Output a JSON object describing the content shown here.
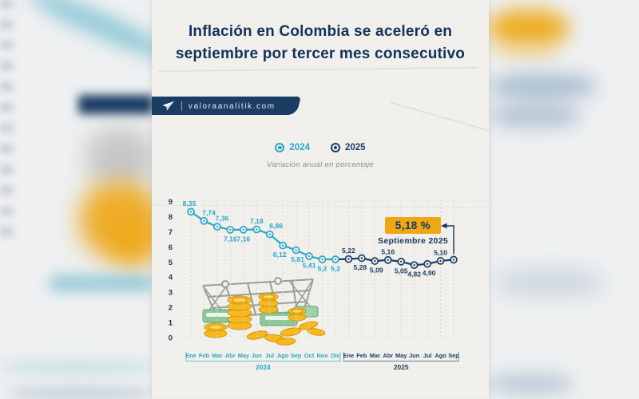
{
  "banner": {
    "site": "valoraanalitik.com"
  },
  "icons": {
    "banner": "paper-plane-icon",
    "legend_marker": "bullseye-icon",
    "illustration": "shopping-basket-with-coins-and-bills"
  },
  "colors": {
    "navy": "#16365f",
    "teal": "#2aa7c7",
    "gold": "#efa715",
    "paper": "#f1f0ec",
    "grid": "#d8d7d1"
  },
  "chart_data": {
    "type": "line",
    "title": "Inflación en Colombia se aceleró en septiembre por tercer mes consecutivo",
    "subtitle": "Variación anual en porcentaje",
    "ylim": [
      0,
      9
    ],
    "yticks": [
      0,
      1,
      2,
      3,
      4,
      5,
      6,
      7,
      8,
      9
    ],
    "grid": "vertical-dashed",
    "legend_position": "top-center",
    "series": [
      {
        "name": "2024",
        "color": "#2aa7c7",
        "months": [
          "Ene",
          "Feb",
          "Mar",
          "Abr",
          "May",
          "Jun",
          "Jul",
          "Ago",
          "Sep",
          "Oct",
          "Nov",
          "Dic"
        ],
        "values": [
          8.35,
          7.74,
          7.36,
          7.16,
          7.16,
          7.18,
          6.86,
          6.12,
          5.81,
          5.41,
          5.2,
          5.2
        ],
        "labels": [
          "8,35",
          "7,74",
          "7,36",
          "7,16",
          "7,16",
          "7,18",
          "6,86",
          "6,12",
          "5,81",
          "5,41",
          "5,2",
          "5,2"
        ],
        "label_pos": [
          "above",
          "above",
          "above",
          "below",
          "below",
          "above",
          "above",
          "below",
          "below",
          "below",
          "below",
          "below"
        ],
        "label_dx": [
          -2,
          6,
          6,
          0,
          0,
          0,
          8,
          -4,
          2,
          0,
          0,
          0
        ]
      },
      {
        "name": "2025",
        "color": "#1c3e66",
        "months": [
          "Ene",
          "Feb",
          "Mar",
          "Abr",
          "May",
          "Jun",
          "Jul",
          "Ago",
          "Sep"
        ],
        "values": [
          5.22,
          5.28,
          5.09,
          5.16,
          5.05,
          4.82,
          4.9,
          5.1,
          5.18
        ],
        "labels": [
          "5,22",
          "5,28",
          "5,09",
          "5,16",
          "5,05",
          "4,82",
          "4,90",
          "5,10",
          ""
        ],
        "label_pos": [
          "above",
          "below",
          "below",
          "above",
          "below",
          "below",
          "below",
          "above",
          "none"
        ],
        "label_dx": [
          0,
          -2,
          2,
          0,
          0,
          0,
          2,
          0,
          0
        ]
      }
    ],
    "annotation": {
      "value_label": "5,18 %",
      "date_label": "Septiembre 2025",
      "points_to": "Sep 2025"
    }
  }
}
